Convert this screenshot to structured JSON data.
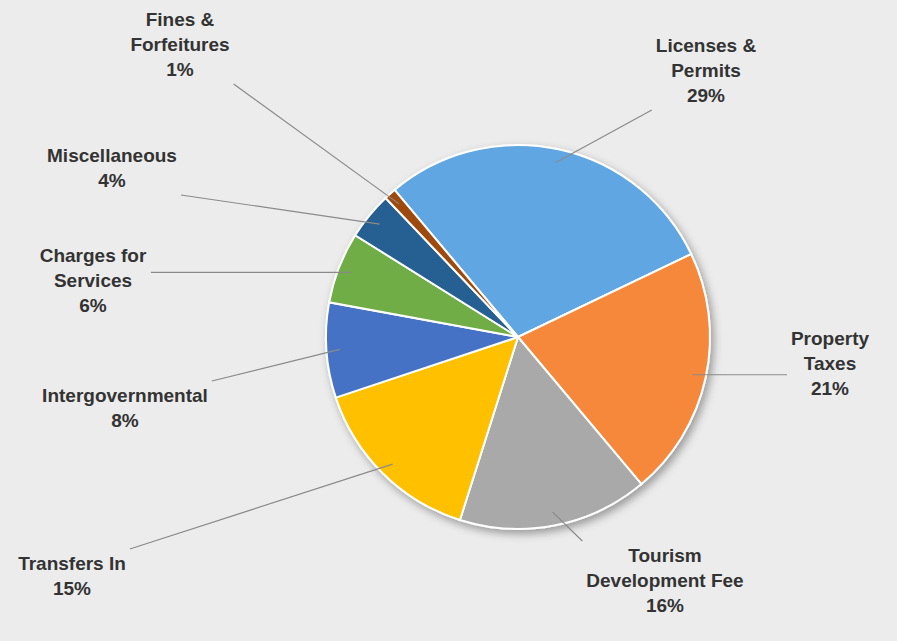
{
  "chart_data": {
    "type": "pie",
    "categories": [
      "Licenses & Permits",
      "Property Taxes",
      "Tourism Development Fee",
      "Transfers In",
      "Intergovernmental",
      "Charges for Services",
      "Miscellaneous",
      "Fines & Forfeitures"
    ],
    "values": [
      29,
      21,
      16,
      15,
      8,
      6,
      4,
      1
    ],
    "value_labels": [
      "29%",
      "21%",
      "16%",
      "15%",
      "8%",
      "6%",
      "4%",
      "1%"
    ],
    "colors": [
      "#5fa6e2",
      "#f5883a",
      "#a9a9a9",
      "#ffc000",
      "#4472c4",
      "#70ad47",
      "#255e91",
      "#9e480e"
    ],
    "data_labels": true
  }
}
